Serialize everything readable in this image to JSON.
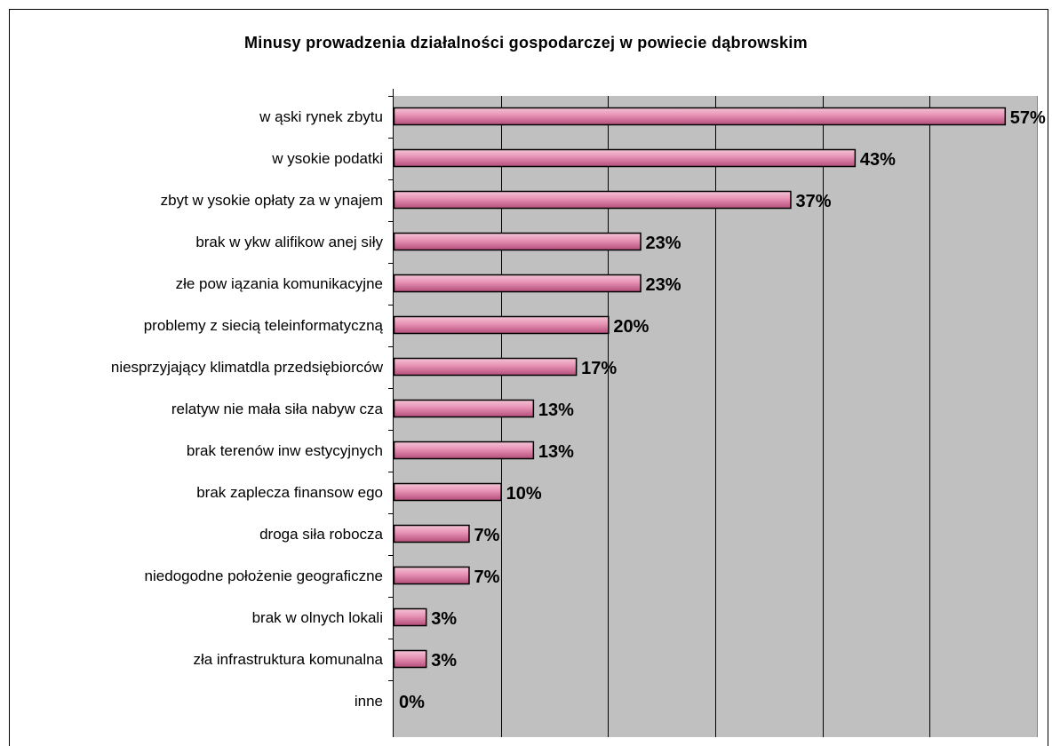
{
  "chart_data": {
    "type": "bar",
    "orientation": "horizontal",
    "title": "Minusy prowadzenia działalności gospodarczej w powiecie dąbrowskim",
    "xlabel": "",
    "ylabel": "",
    "xlim": [
      0,
      60
    ],
    "grid": true,
    "legend": "none",
    "categories": [
      "w ąski rynek zbytu",
      "w ysokie podatki",
      "zbyt w ysokie opłaty za w ynajem",
      "brak w ykw alifikow anej siły",
      "złe pow iązania komunikacyjne",
      "problemy z siecią teleinformatyczną",
      "niesprzyjający klimatdla przedsiębiorców",
      "relatyw nie mała siła nabyw cza",
      "brak terenów  inw estycyjnych",
      "brak zaplecza finansow ego",
      "droga siła robocza",
      "niedogodne położenie geograficzne",
      "brak w olnych lokali",
      "zła infrastruktura komunalna",
      "inne"
    ],
    "values": [
      57,
      43,
      37,
      23,
      23,
      20,
      17,
      13,
      13,
      10,
      7,
      7,
      3,
      3,
      0
    ],
    "value_labels": [
      "57%",
      "43%",
      "37%",
      "23%",
      "23%",
      "20%",
      "17%",
      "13%",
      "13%",
      "10%",
      "7%",
      "7%",
      "3%",
      "3%",
      "0%"
    ],
    "colors": {
      "plot_background": "#c0c0c0",
      "bar_fill": "#d9779f",
      "bar_highlight": "#f4c4d6",
      "bar_stroke": "#000000",
      "grid": "#000000"
    }
  }
}
